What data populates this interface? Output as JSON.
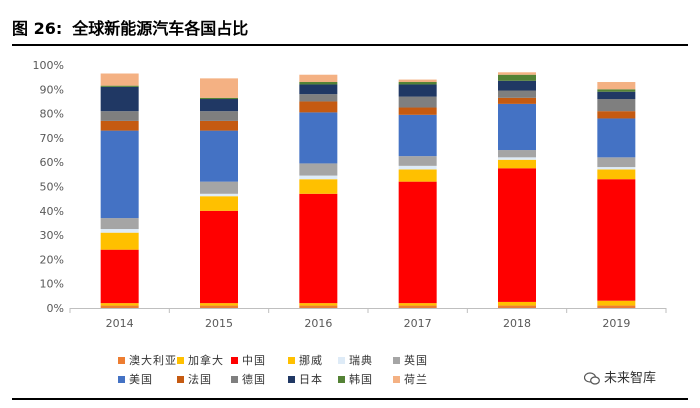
{
  "figure": {
    "label": "图 26:",
    "title": "全球新能源汽车各国占比"
  },
  "watermark": {
    "text": "未来智库"
  },
  "chart_data": {
    "type": "bar",
    "stacked": true,
    "categories": [
      "2014",
      "2015",
      "2016",
      "2017",
      "2018",
      "2019"
    ],
    "ylim": [
      0,
      100
    ],
    "y_ticks": [
      "0%",
      "10%",
      "20%",
      "30%",
      "40%",
      "50%",
      "60%",
      "70%",
      "80%",
      "90%",
      "100%"
    ],
    "grid": false,
    "legend_position": "bottom",
    "series": [
      {
        "name": "澳大利亚",
        "color": "#ed7d31",
        "values": [
          1,
          1,
          1,
          1,
          1,
          1
        ]
      },
      {
        "name": "加拿大",
        "color": "#ffc000",
        "values": [
          1,
          1,
          1,
          1,
          1.5,
          2
        ]
      },
      {
        "name": "中国",
        "color": "#ff0000",
        "values": [
          22,
          38,
          45,
          50,
          55,
          50
        ]
      },
      {
        "name": "挪威",
        "color": "#ffc000",
        "values": [
          7,
          6,
          6,
          5,
          3.5,
          4
        ]
      },
      {
        "name": "瑞典",
        "color": "#deebf7",
        "values": [
          1.5,
          1,
          1.5,
          1.5,
          1,
          1
        ]
      },
      {
        "name": "英国",
        "color": "#a5a5a5",
        "values": [
          4.5,
          5,
          5,
          4,
          3,
          4
        ]
      },
      {
        "name": "美国",
        "color": "#4472c4",
        "values": [
          36,
          21,
          21,
          17,
          19,
          16
        ]
      },
      {
        "name": "法国",
        "color": "#c55a11",
        "values": [
          4,
          4,
          4.5,
          3,
          2.5,
          3
        ]
      },
      {
        "name": "德国",
        "color": "#7f7f7f",
        "values": [
          4,
          4,
          3,
          4.5,
          3,
          5
        ]
      },
      {
        "name": "日本",
        "color": "#203864",
        "values": [
          10,
          5,
          4,
          5,
          4,
          3
        ]
      },
      {
        "name": "韩国",
        "color": "#548235",
        "values": [
          0.5,
          0.5,
          1,
          1,
          2.5,
          1
        ]
      },
      {
        "name": "荷兰",
        "color": "#f4b183",
        "values": [
          5,
          8,
          3,
          1,
          1,
          3
        ]
      }
    ]
  }
}
